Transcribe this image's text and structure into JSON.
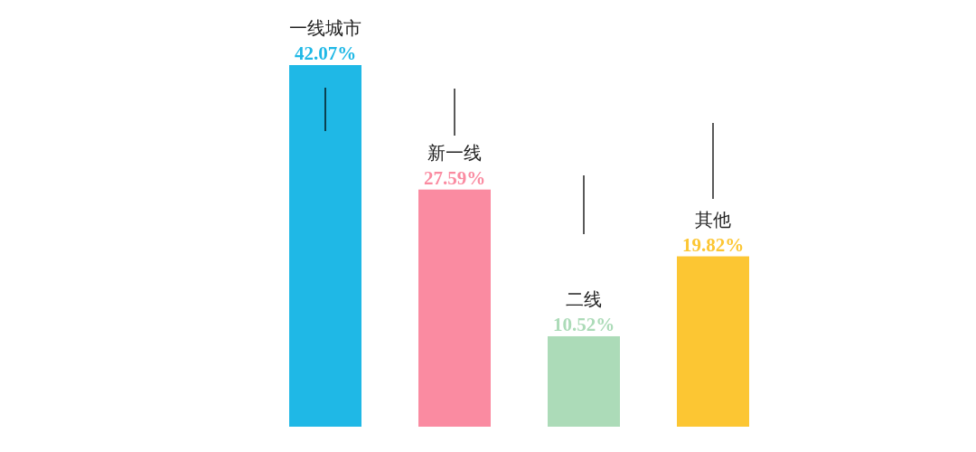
{
  "chart_data": {
    "type": "bar",
    "categories": [
      "一线城市",
      "新一线",
      "二线",
      "其他"
    ],
    "values": [
      42.07,
      27.59,
      10.52,
      19.82
    ],
    "colors": [
      "#1fb8e6",
      "#fa8ba1",
      "#acdbb8",
      "#fcc633"
    ],
    "value_labels": [
      "42.07%",
      "27.59%",
      "10.52%",
      "19.82%"
    ]
  }
}
